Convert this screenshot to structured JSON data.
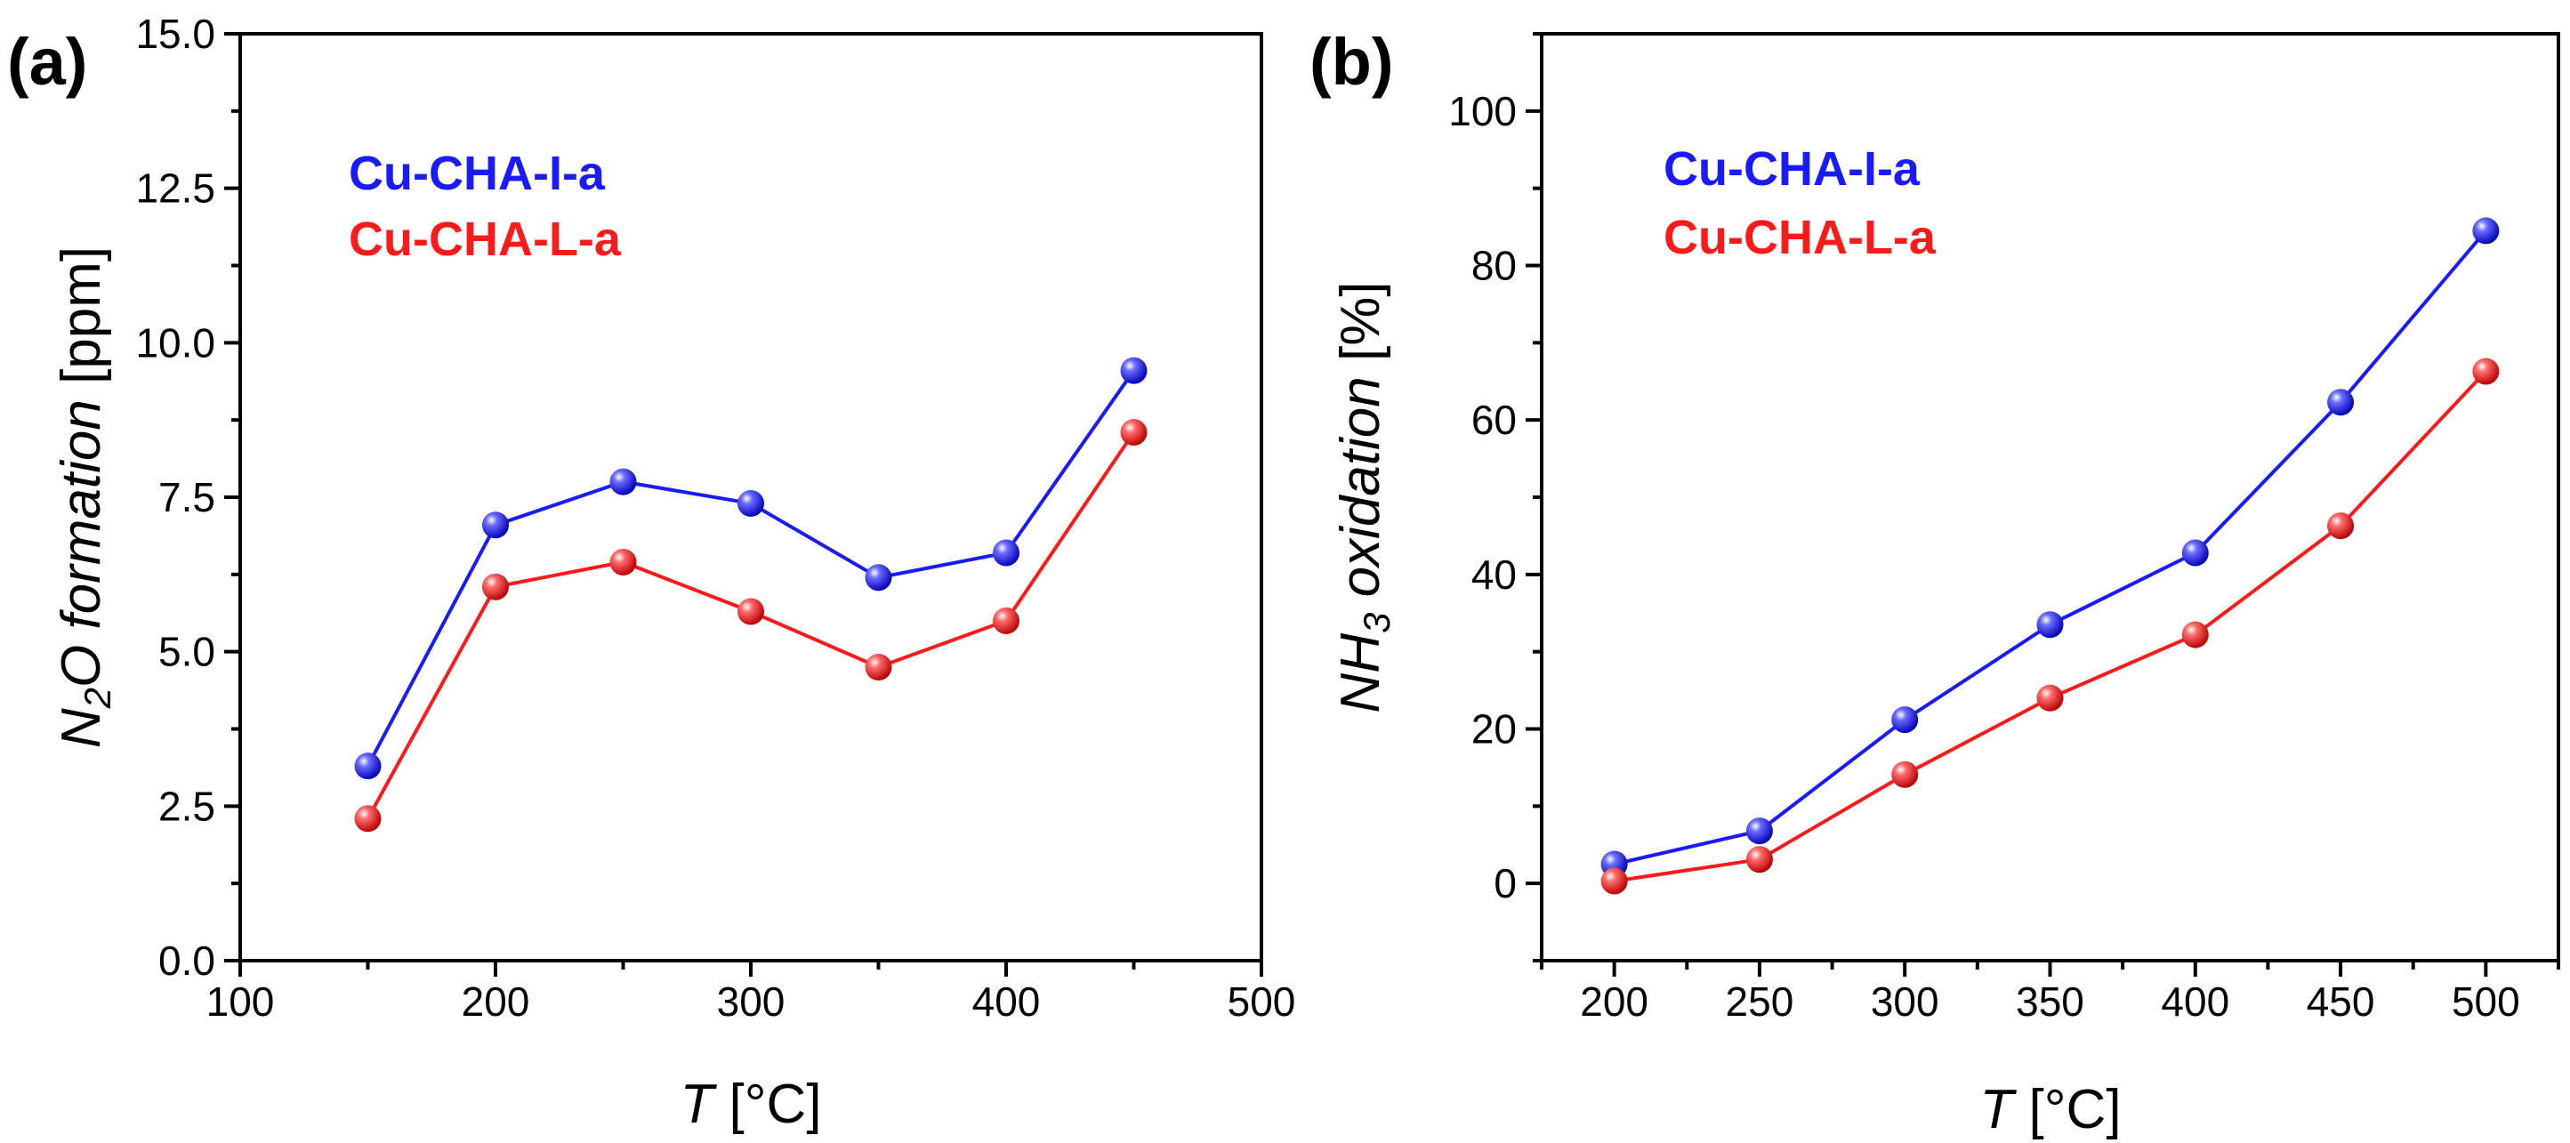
{
  "chart_data": [
    {
      "type": "line",
      "panel_label": "(a)",
      "title": "",
      "xlabel_prefix": "T",
      "xlabel_rest": " [°C]",
      "ylabel_a": "N",
      "ylabel_sub": "2",
      "ylabel_b": "O formation",
      "ylabel_unit": " [ppm]",
      "xlim": [
        100,
        500
      ],
      "ylim": [
        0,
        15
      ],
      "xticks": [
        100,
        200,
        300,
        400,
        500
      ],
      "yticks": [
        0,
        2.5,
        5,
        7.5,
        10,
        12.5,
        15
      ],
      "xtick_labels": [
        "100",
        "200",
        "300",
        "400",
        "500"
      ],
      "ytick_labels": [
        "0.0",
        "2.5",
        "5.0",
        "7.5",
        "10.0",
        "12.5",
        "15.0"
      ],
      "x": [
        150,
        200,
        250,
        300,
        350,
        400,
        450
      ],
      "series": [
        {
          "name": "Cu-CHA-I-a",
          "color": "#1a1aff",
          "values": [
            3.15,
            7.05,
            7.75,
            7.4,
            6.2,
            6.6,
            9.55
          ]
        },
        {
          "name": "Cu-CHA-L-a",
          "color": "#ff1a1a",
          "values": [
            2.3,
            6.05,
            6.45,
            5.65,
            4.75,
            5.5,
            8.55
          ]
        }
      ],
      "legend_position": "top-left",
      "grid": false
    },
    {
      "type": "line",
      "panel_label": "(b)",
      "title": "",
      "xlabel_prefix": "T",
      "xlabel_rest": " [°C]",
      "ylabel_a": "NH",
      "ylabel_sub": "3",
      "ylabel_b": " oxidation",
      "ylabel_unit": " [%]",
      "xlim": [
        175,
        525
      ],
      "ylim": [
        -10,
        110
      ],
      "xticks": [
        200,
        250,
        300,
        350,
        400,
        450,
        500
      ],
      "yticks": [
        0,
        20,
        40,
        60,
        80,
        100
      ],
      "xtick_labels": [
        "200",
        "250",
        "300",
        "350",
        "400",
        "450",
        "500"
      ],
      "ytick_labels": [
        "0",
        "20",
        "40",
        "60",
        "80",
        "100"
      ],
      "x": [
        200,
        250,
        300,
        350,
        400,
        450,
        500
      ],
      "series": [
        {
          "name": "Cu-CHA-I-a",
          "color": "#1a1aff",
          "values": [
            2.5,
            6.8,
            21.2,
            33.5,
            42.8,
            62.3,
            84.5
          ]
        },
        {
          "name": "Cu-CHA-L-a",
          "color": "#ff1a1a",
          "values": [
            0.3,
            3.1,
            14.1,
            24.0,
            32.2,
            46.3,
            66.3
          ]
        }
      ],
      "legend_position": "top-left",
      "grid": false
    }
  ]
}
